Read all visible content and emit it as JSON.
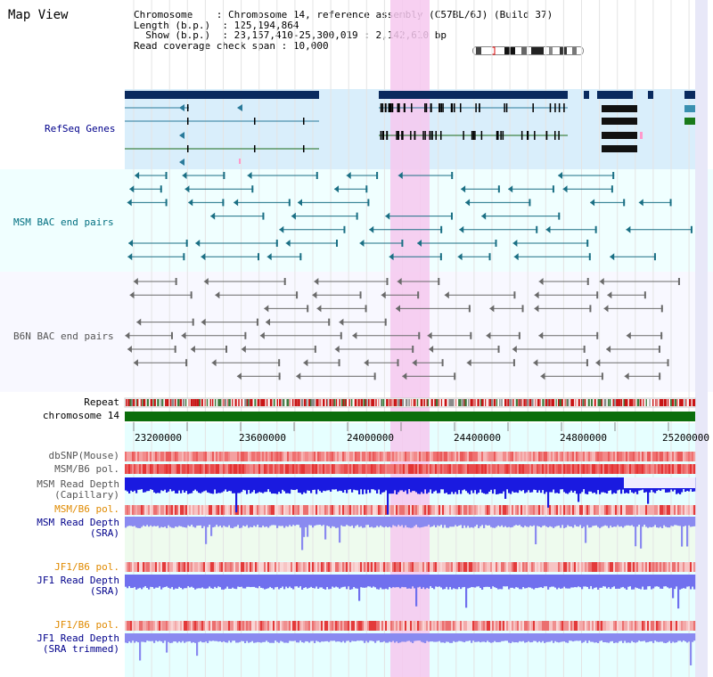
{
  "title": "Map View",
  "info": {
    "chromosome_label": "Chromosome",
    "chromosome_value": "Chromosome 14, reference assembly (C57BL/6J) (Build 37)",
    "length_label": "Length (b.p.)",
    "length_value": "125,194,864",
    "show_label": "Show (b.p.)",
    "show_value": "23,157,410-25,300,019 : 2,142,610 bp",
    "coverage_label": "Read coverage check span",
    "coverage_value": "10,000"
  },
  "tracks": {
    "refseq": "RefSeq Genes",
    "msm_bac": "MSM BAC end pairs",
    "b6n_bac": "B6N BAC end pairs",
    "repeat": "Repeat",
    "chromosome": "chromosome 14",
    "dbsnp": "dbSNP(Mouse)",
    "msm_b6_pol_1": "MSM/B6 pol.",
    "msm_depth_cap_1": "MSM Read Depth",
    "msm_depth_cap_2": "(Capillary)",
    "msm_b6_pol_2": "MSM/B6 pol.",
    "msm_depth_sra_1": "MSM Read Depth",
    "msm_depth_sra_2": "(SRA)",
    "jf1_b6_pol_1": "JF1/B6 pol.",
    "jf1_depth_sra_1": "JF1 Read Depth",
    "jf1_depth_sra_2": "(SRA)",
    "jf1_b6_pol_2": "JF1/B6 pol.",
    "jf1_depth_trim_1": "JF1 Read Depth",
    "jf1_depth_trim_2": "(SRA trimmed)"
  },
  "axis_ticks": [
    "23200000",
    "23600000",
    "24000000",
    "24400000",
    "24800000",
    "25200000"
  ],
  "colors": {
    "refseq_label": "#00008b",
    "msm_label": "#006f80",
    "b6n_label": "#555555",
    "orange_label": "#e08a00",
    "blue_label": "#00008b",
    "highlight": "#f6c8ee",
    "chromosome_bar": "#0b6e0b"
  }
}
